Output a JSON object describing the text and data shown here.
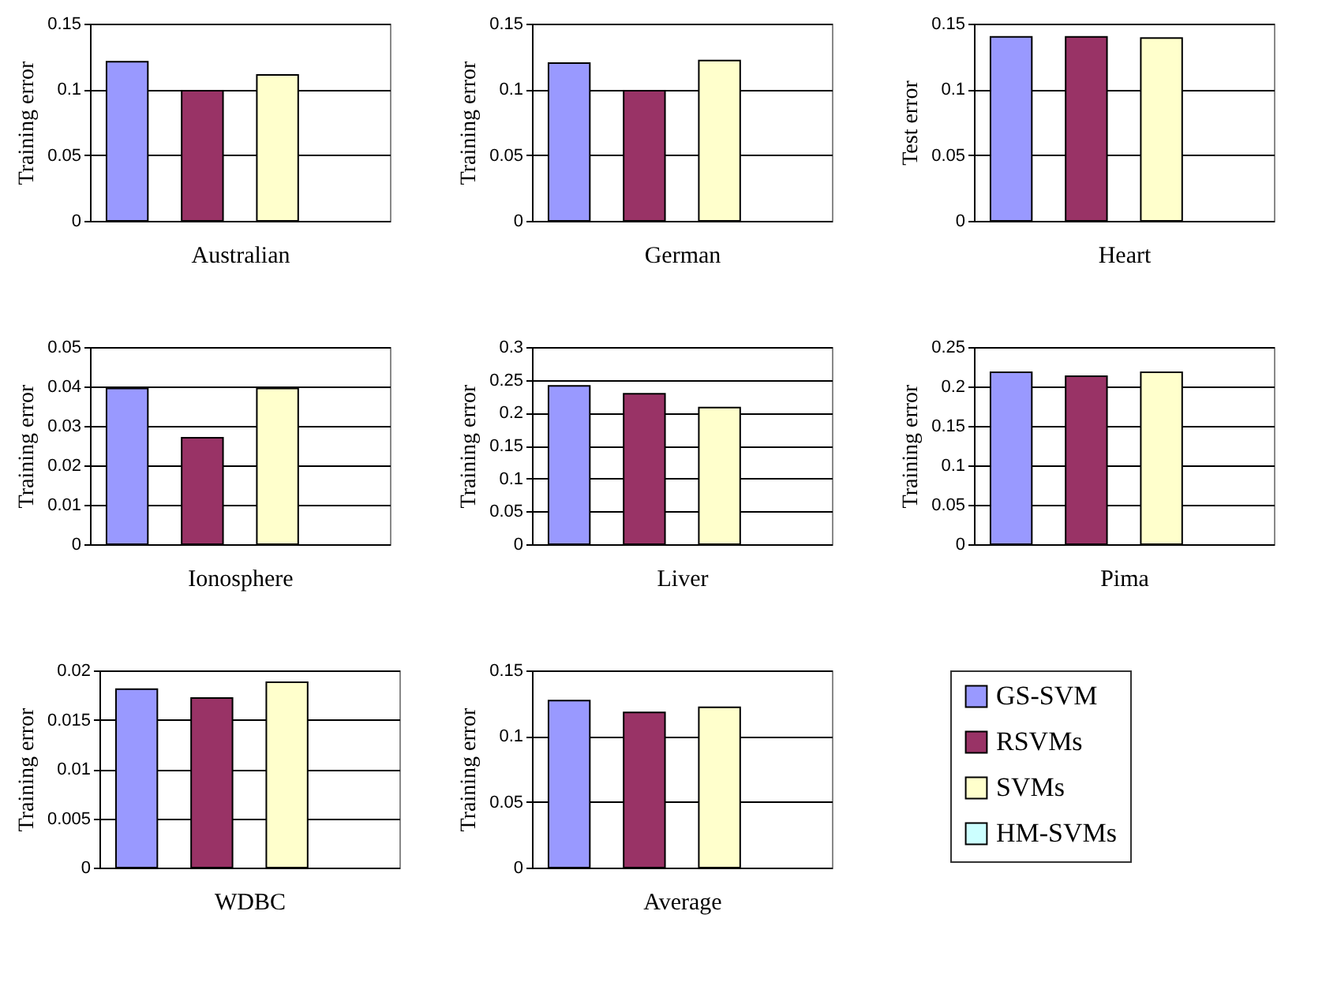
{
  "chart_data": [
    {
      "type": "bar",
      "xlabel": "Australian",
      "ylabel": "Training error",
      "categories": [
        null
      ],
      "ylim": [
        0,
        0.15
      ],
      "yticks": [
        0,
        0.05,
        0.1,
        0.15
      ],
      "grid": "y",
      "series": [
        {
          "color": "#9999ff",
          "values": [
            0.121
          ]
        },
        {
          "color": "#993366",
          "values": [
            0.099
          ]
        },
        {
          "color": "#ffffcc",
          "values": [
            0.111
          ]
        },
        {
          "color": "#ccffff",
          "values": [
            null
          ]
        }
      ]
    },
    {
      "type": "bar",
      "xlabel": "German",
      "ylabel": "Training error",
      "categories": [
        null
      ],
      "ylim": [
        0,
        0.15
      ],
      "yticks": [
        0,
        0.05,
        0.1,
        0.15
      ],
      "grid": "y",
      "series": [
        {
          "color": "#9999ff",
          "values": [
            0.12
          ]
        },
        {
          "color": "#993366",
          "values": [
            0.099
          ]
        },
        {
          "color": "#ffffcc",
          "values": [
            0.122
          ]
        },
        {
          "color": "#ccffff",
          "values": [
            null
          ]
        }
      ]
    },
    {
      "type": "bar",
      "xlabel": "Heart",
      "ylabel": "Test error",
      "categories": [
        null
      ],
      "ylim": [
        0,
        0.15
      ],
      "yticks": [
        0,
        0.05,
        0.1,
        0.15
      ],
      "grid": "y",
      "series": [
        {
          "color": "#9999ff",
          "values": [
            0.14
          ]
        },
        {
          "color": "#993366",
          "values": [
            0.14
          ]
        },
        {
          "color": "#ffffcc",
          "values": [
            0.139
          ]
        },
        {
          "color": "#ccffff",
          "values": [
            null
          ]
        }
      ]
    },
    {
      "type": "bar",
      "xlabel": "Ionosphere",
      "ylabel": "Training error",
      "categories": [
        null
      ],
      "ylim": [
        0,
        0.05
      ],
      "yticks": [
        0,
        0.01,
        0.02,
        0.03,
        0.04,
        0.05
      ],
      "grid": "y",
      "series": [
        {
          "color": "#9999ff",
          "values": [
            0.0395
          ]
        },
        {
          "color": "#993366",
          "values": [
            0.027
          ]
        },
        {
          "color": "#ffffcc",
          "values": [
            0.0395
          ]
        },
        {
          "color": "#ccffff",
          "values": [
            null
          ]
        }
      ]
    },
    {
      "type": "bar",
      "xlabel": "Liver",
      "ylabel": "Training error",
      "categories": [
        null
      ],
      "ylim": [
        0,
        0.3
      ],
      "yticks": [
        0,
        0.05,
        0.1,
        0.15,
        0.2,
        0.25,
        0.3
      ],
      "grid": "y",
      "series": [
        {
          "color": "#9999ff",
          "values": [
            0.241
          ]
        },
        {
          "color": "#993366",
          "values": [
            0.229
          ]
        },
        {
          "color": "#ffffcc",
          "values": [
            0.208
          ]
        },
        {
          "color": "#ccffff",
          "values": [
            null
          ]
        }
      ]
    },
    {
      "type": "bar",
      "xlabel": "Pima",
      "ylabel": "Training error",
      "categories": [
        null
      ],
      "ylim": [
        0,
        0.25
      ],
      "yticks": [
        0,
        0.05,
        0.1,
        0.15,
        0.2,
        0.25
      ],
      "grid": "y",
      "series": [
        {
          "color": "#9999ff",
          "values": [
            0.218
          ]
        },
        {
          "color": "#993366",
          "values": [
            0.213
          ]
        },
        {
          "color": "#ffffcc",
          "values": [
            0.218
          ]
        },
        {
          "color": "#ccffff",
          "values": [
            null
          ]
        }
      ]
    },
    {
      "type": "bar",
      "xlabel": "WDBC",
      "ylabel": "Training error",
      "categories": [
        null
      ],
      "ylim": [
        0,
        0.02
      ],
      "yticks": [
        0,
        0.005,
        0.01,
        0.015,
        0.02
      ],
      "grid": "y",
      "series": [
        {
          "color": "#9999ff",
          "values": [
            0.0181
          ]
        },
        {
          "color": "#993366",
          "values": [
            0.0172
          ]
        },
        {
          "color": "#ffffcc",
          "values": [
            0.0188
          ]
        },
        {
          "color": "#ccffff",
          "values": [
            null
          ]
        }
      ]
    },
    {
      "type": "bar",
      "xlabel": "Average",
      "ylabel": "Training error",
      "categories": [
        null
      ],
      "ylim": [
        0,
        0.15
      ],
      "yticks": [
        0,
        0.05,
        0.1,
        0.15
      ],
      "grid": "y",
      "legend": "right",
      "series": [
        {
          "name": "GS-SVM",
          "color": "#9999ff",
          "values": [
            0.127
          ]
        },
        {
          "name": "RSVMs",
          "color": "#993366",
          "values": [
            0.118
          ]
        },
        {
          "name": "SVMs",
          "color": "#ffffcc",
          "values": [
            0.122
          ]
        },
        {
          "name": "HM-SVMs",
          "color": "#ccffff",
          "values": [
            null
          ]
        }
      ]
    }
  ]
}
